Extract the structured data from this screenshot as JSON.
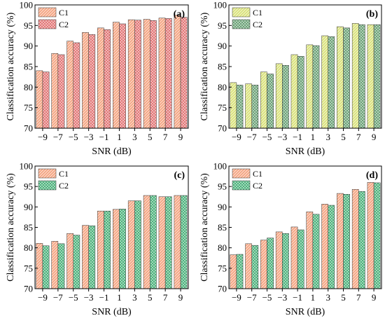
{
  "chart_data": [
    {
      "type": "bar",
      "panel_label": "(a)",
      "xlabel": "SNR (dB)",
      "ylabel": "Classification accuracy (%)",
      "ylim": [
        70,
        100
      ],
      "yticks": [
        70,
        75,
        80,
        85,
        90,
        95,
        100
      ],
      "categories": [
        "−9",
        "−7",
        "−5",
        "−3",
        "−1",
        "1",
        "3",
        "5",
        "7",
        "9"
      ],
      "legend_position": "top-left",
      "series": [
        {
          "name": "C1",
          "pattern": "diagonal",
          "color": "#f4a582",
          "values": [
            84.0,
            88.2,
            91.2,
            93.3,
            94.4,
            95.8,
            96.4,
            96.5,
            96.8,
            97.5
          ]
        },
        {
          "name": "C2",
          "pattern": "cross",
          "color": "#e06b6b",
          "values": [
            83.7,
            87.9,
            90.8,
            92.8,
            94.0,
            95.4,
            96.3,
            96.2,
            96.7,
            97.0
          ]
        }
      ]
    },
    {
      "type": "bar",
      "panel_label": "(b)",
      "xlabel": "SNR (dB)",
      "ylabel": "Classification accuracy (%)",
      "ylim": [
        70,
        100
      ],
      "yticks": [
        70,
        75,
        80,
        85,
        90,
        95,
        100
      ],
      "categories": [
        "−9",
        "−7",
        "−5",
        "−3",
        "−1",
        "1",
        "3",
        "5",
        "7",
        "9"
      ],
      "legend_position": "top-left",
      "series": [
        {
          "name": "C1",
          "pattern": "diagonal",
          "color": "#d9e27a",
          "values": [
            81.1,
            80.8,
            83.7,
            85.7,
            87.9,
            90.3,
            92.5,
            94.7,
            95.5,
            95.2
          ]
        },
        {
          "name": "C2",
          "pattern": "cross",
          "color": "#5e9a6b",
          "values": [
            80.5,
            80.5,
            83.2,
            85.3,
            87.5,
            90.1,
            92.3,
            94.4,
            95.2,
            95.2
          ]
        }
      ]
    },
    {
      "type": "bar",
      "panel_label": "(c)",
      "xlabel": "SNR (dB)",
      "ylabel": "Classification accuracy (%)",
      "ylim": [
        70,
        100
      ],
      "yticks": [
        70,
        75,
        80,
        85,
        90,
        95,
        100
      ],
      "categories": [
        "−9",
        "−7",
        "−5",
        "−3",
        "−1",
        "1",
        "3",
        "5",
        "7",
        "9"
      ],
      "legend_position": "top-left",
      "series": [
        {
          "name": "C1",
          "pattern": "diagonal",
          "color": "#f4a582",
          "values": [
            81.1,
            81.6,
            83.5,
            85.5,
            89.0,
            89.4,
            91.5,
            92.8,
            92.5,
            92.8
          ]
        },
        {
          "name": "C2",
          "pattern": "cross",
          "color": "#3dab70",
          "values": [
            80.5,
            81.0,
            83.1,
            85.4,
            89.0,
            89.5,
            91.5,
            92.8,
            92.5,
            92.8
          ]
        }
      ]
    },
    {
      "type": "bar",
      "panel_label": "(d)",
      "xlabel": "SNR (dB)",
      "ylabel": "Classification accuracy (%)",
      "ylim": [
        70,
        100
      ],
      "yticks": [
        70,
        75,
        80,
        85,
        90,
        95,
        100
      ],
      "categories": [
        "−9",
        "−7",
        "−5",
        "−3",
        "−1",
        "1",
        "3",
        "5",
        "7",
        "9"
      ],
      "legend_position": "top-left",
      "series": [
        {
          "name": "C1",
          "pattern": "diagonal",
          "color": "#f4a582",
          "values": [
            78.3,
            81.0,
            81.9,
            83.9,
            85.1,
            88.8,
            90.7,
            93.3,
            94.3,
            96.0
          ]
        },
        {
          "name": "C2",
          "pattern": "cross",
          "color": "#3dab70",
          "values": [
            78.4,
            80.6,
            82.4,
            83.5,
            84.4,
            88.2,
            90.4,
            93.1,
            93.8,
            95.9
          ]
        }
      ]
    }
  ]
}
